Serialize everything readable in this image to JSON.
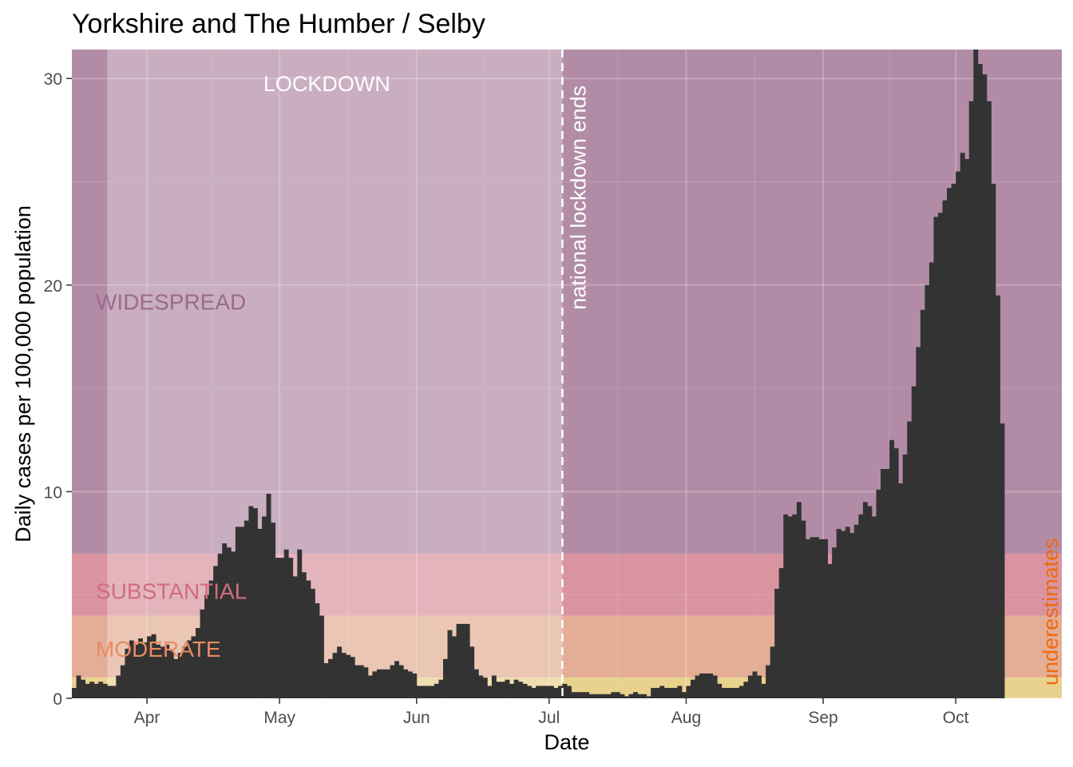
{
  "chart_data": {
    "type": "bar",
    "title": "Yorkshire and The Humber / Selby",
    "xlabel": "Date",
    "ylabel": "Daily cases per 100,000 population",
    "xlim": [
      "2020-03-15",
      "2020-10-25"
    ],
    "ylim": [
      0,
      31.4
    ],
    "x_ticks": [
      {
        "date": "2020-04-01",
        "label": "Apr"
      },
      {
        "date": "2020-05-01",
        "label": "May"
      },
      {
        "date": "2020-06-01",
        "label": "Jun"
      },
      {
        "date": "2020-07-01",
        "label": "Jul"
      },
      {
        "date": "2020-08-01",
        "label": "Aug"
      },
      {
        "date": "2020-09-01",
        "label": "Sep"
      },
      {
        "date": "2020-10-01",
        "label": "Oct"
      }
    ],
    "y_ticks": [
      0,
      10,
      20,
      30
    ],
    "grid": true,
    "bar_color": "#333333",
    "start_date": "2020-03-15",
    "values": [
      0.5,
      1.1,
      0.9,
      0.7,
      0.8,
      0.7,
      0.8,
      0.7,
      0.6,
      0.6,
      1.1,
      1.6,
      2.4,
      2.8,
      2.6,
      2.9,
      2.7,
      3.0,
      3.1,
      2.6,
      2.5,
      2.6,
      2.3,
      1.9,
      2.2,
      2.5,
      2.8,
      3.0,
      3.4,
      4.3,
      5.0,
      5.7,
      6.4,
      7.0,
      7.5,
      7.3,
      7.1,
      8.3,
      8.3,
      8.6,
      9.3,
      9.2,
      8.2,
      8.8,
      9.9,
      8.5,
      6.8,
      6.8,
      7.2,
      6.8,
      5.9,
      7.2,
      6.1,
      5.7,
      5.3,
      4.6,
      4.0,
      1.7,
      1.9,
      2.2,
      2.5,
      2.2,
      2.1,
      2.0,
      1.6,
      1.6,
      1.5,
      1.1,
      1.3,
      1.4,
      1.4,
      1.4,
      1.6,
      1.8,
      1.6,
      1.4,
      1.3,
      1.2,
      0.6,
      0.6,
      0.6,
      0.6,
      0.7,
      0.9,
      1.9,
      3.3,
      3.0,
      3.6,
      3.6,
      3.6,
      2.5,
      1.4,
      1.1,
      1.0,
      0.6,
      1.1,
      0.8,
      0.8,
      0.9,
      0.7,
      0.9,
      0.8,
      0.7,
      0.6,
      0.5,
      0.6,
      0.6,
      0.6,
      0.6,
      0.5,
      0.6,
      0.7,
      0.6,
      0.3,
      0.3,
      0.3,
      0.3,
      0.2,
      0.2,
      0.2,
      0.2,
      0.2,
      0.3,
      0.3,
      0.2,
      0.1,
      0.2,
      0.3,
      0.2,
      0.2,
      0.1,
      0.5,
      0.5,
      0.6,
      0.5,
      0.5,
      0.5,
      0.6,
      0.3,
      0.6,
      0.9,
      1.1,
      1.2,
      1.2,
      1.2,
      1.1,
      0.7,
      0.5,
      0.5,
      0.5,
      0.5,
      0.6,
      0.8,
      1.1,
      1.3,
      1.1,
      0.7,
      1.6,
      2.5,
      5.3,
      6.3,
      8.9,
      8.8,
      8.9,
      9.5,
      8.6,
      7.7,
      7.8,
      7.8,
      7.7,
      7.7,
      6.5,
      7.3,
      8.2,
      8.1,
      8.3,
      8.0,
      8.4,
      8.9,
      9.5,
      9.3,
      8.8,
      10.1,
      11.1,
      11.1,
      12.5,
      12.1,
      10.4,
      11.8,
      13.4,
      15.1,
      17.0,
      18.8,
      20.0,
      21.1,
      23.3,
      23.5,
      24.1,
      24.7,
      24.9,
      25.5,
      26.4,
      26.1,
      28.9,
      31.4,
      30.7,
      30.2,
      28.9,
      24.9,
      19.5,
      13.3
    ]
  },
  "zones": [
    {
      "label": "WIDESPREAD",
      "from": 7,
      "to": 31.4,
      "color": "#b28ca7",
      "text_color": "#9b6a8c"
    },
    {
      "label": "SUBSTANTIAL",
      "from": 4,
      "to": 7,
      "color": "#d994a0",
      "text_color": "#d06c80"
    },
    {
      "label": "MODERATE",
      "from": 1,
      "to": 4,
      "color": "#e3ae95",
      "text_color": "#e88b63"
    },
    {
      "label": "",
      "from": 0,
      "to": 1,
      "color": "#e9d28d",
      "text_color": "#e9d28d"
    }
  ],
  "lockdown": {
    "label": "LOCKDOWN",
    "start": "2020-03-23",
    "end": "2020-07-04"
  },
  "lockdown_end_line": {
    "date": "2020-07-04",
    "label": "national lockdown ends"
  },
  "underestimates_label": "underestimates"
}
